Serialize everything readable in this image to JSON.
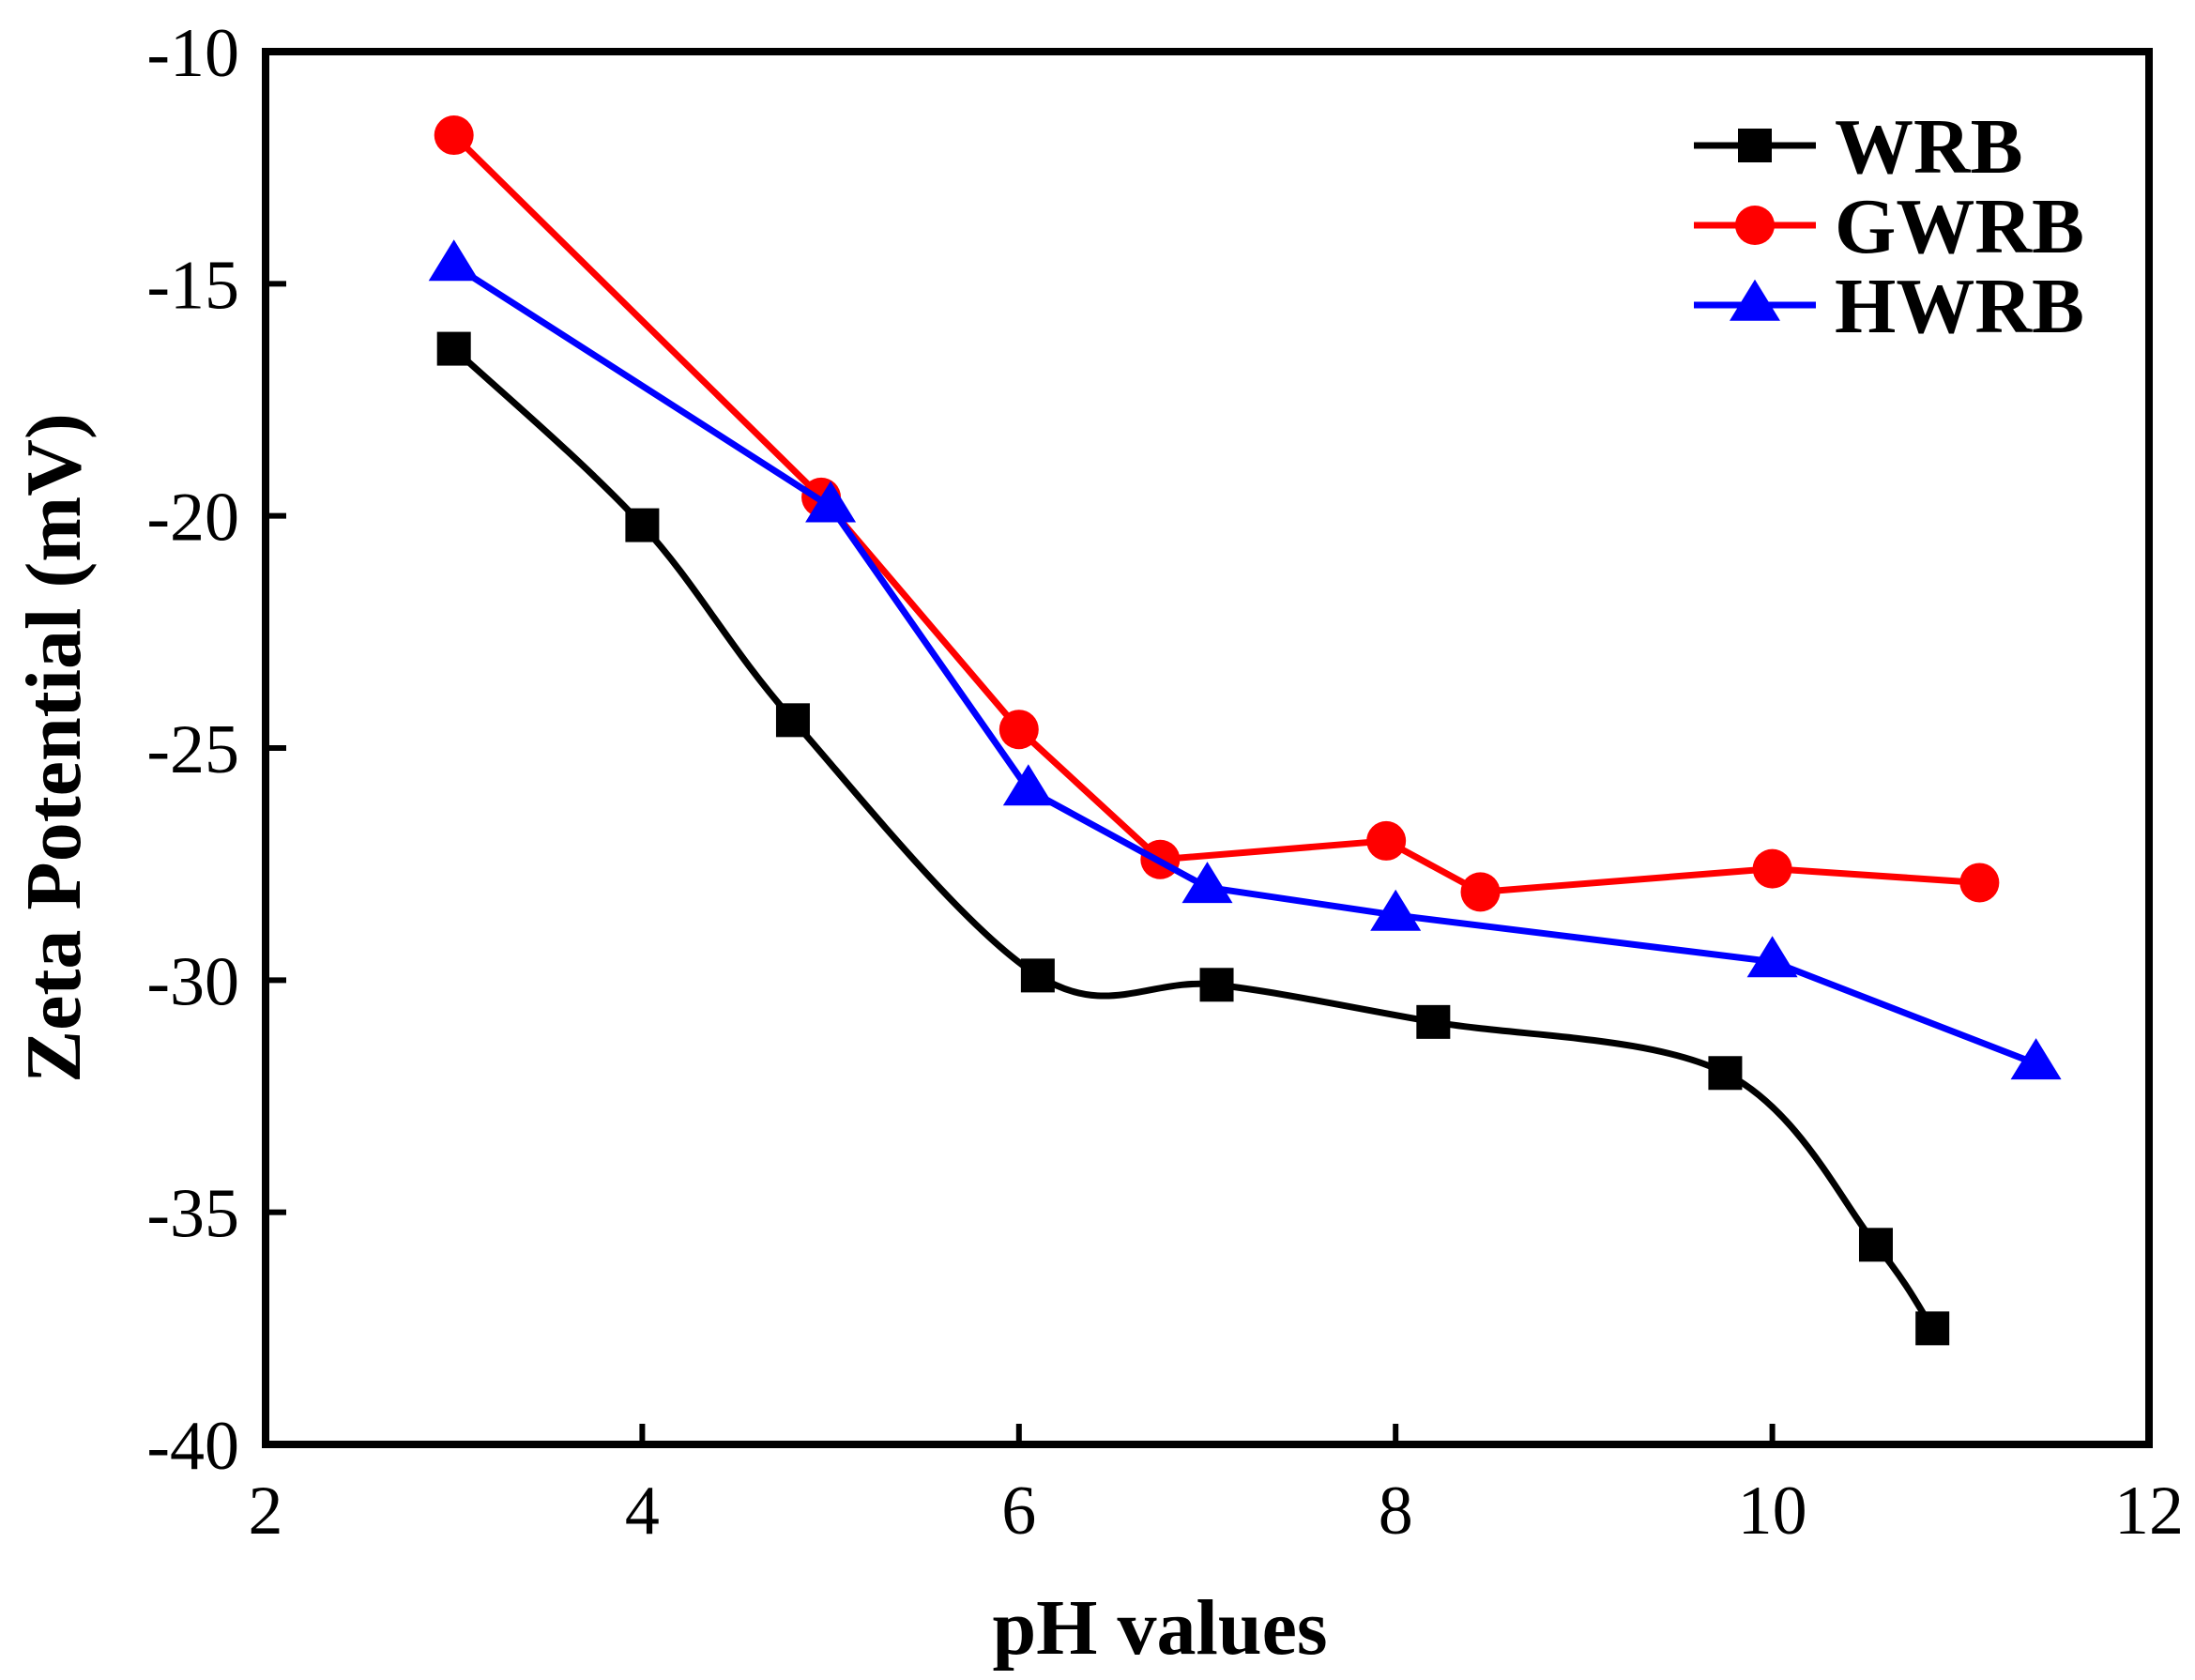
{
  "chart_data": {
    "type": "line",
    "title": "",
    "xlabel": "pH values",
    "ylabel": "Zeta Potential (mV)",
    "xlim": [
      2,
      12
    ],
    "ylim": [
      -40,
      -10
    ],
    "xticks": [
      2,
      4,
      6,
      8,
      10,
      12
    ],
    "yticks": [
      -10,
      -15,
      -20,
      -25,
      -30,
      -35,
      -40
    ],
    "legend_position": "top-right",
    "series": [
      {
        "name": "WRB",
        "color": "#000000",
        "marker": "square",
        "smooth": true,
        "x": [
          3.0,
          4.0,
          4.8,
          6.1,
          7.05,
          8.2,
          9.75,
          10.55,
          10.85
        ],
        "y": [
          -16.4,
          -20.2,
          -24.4,
          -29.9,
          -30.1,
          -30.9,
          -32.0,
          -35.7,
          -37.5
        ]
      },
      {
        "name": "GWRB",
        "color": "#ff0000",
        "marker": "circle",
        "smooth": false,
        "x": [
          3.0,
          4.95,
          6.0,
          6.75,
          7.95,
          8.45,
          10.0,
          11.1
        ],
        "y": [
          -11.8,
          -19.6,
          -24.6,
          -27.4,
          -27.0,
          -28.1,
          -27.6,
          -27.9
        ]
      },
      {
        "name": "HWRB",
        "color": "#0000ff",
        "marker": "triangle",
        "smooth": false,
        "x": [
          3.0,
          5.0,
          6.05,
          7.0,
          8.0,
          10.0,
          11.4
        ],
        "y": [
          -14.6,
          -19.8,
          -25.9,
          -28.0,
          -28.6,
          -29.6,
          -31.8
        ]
      }
    ]
  }
}
